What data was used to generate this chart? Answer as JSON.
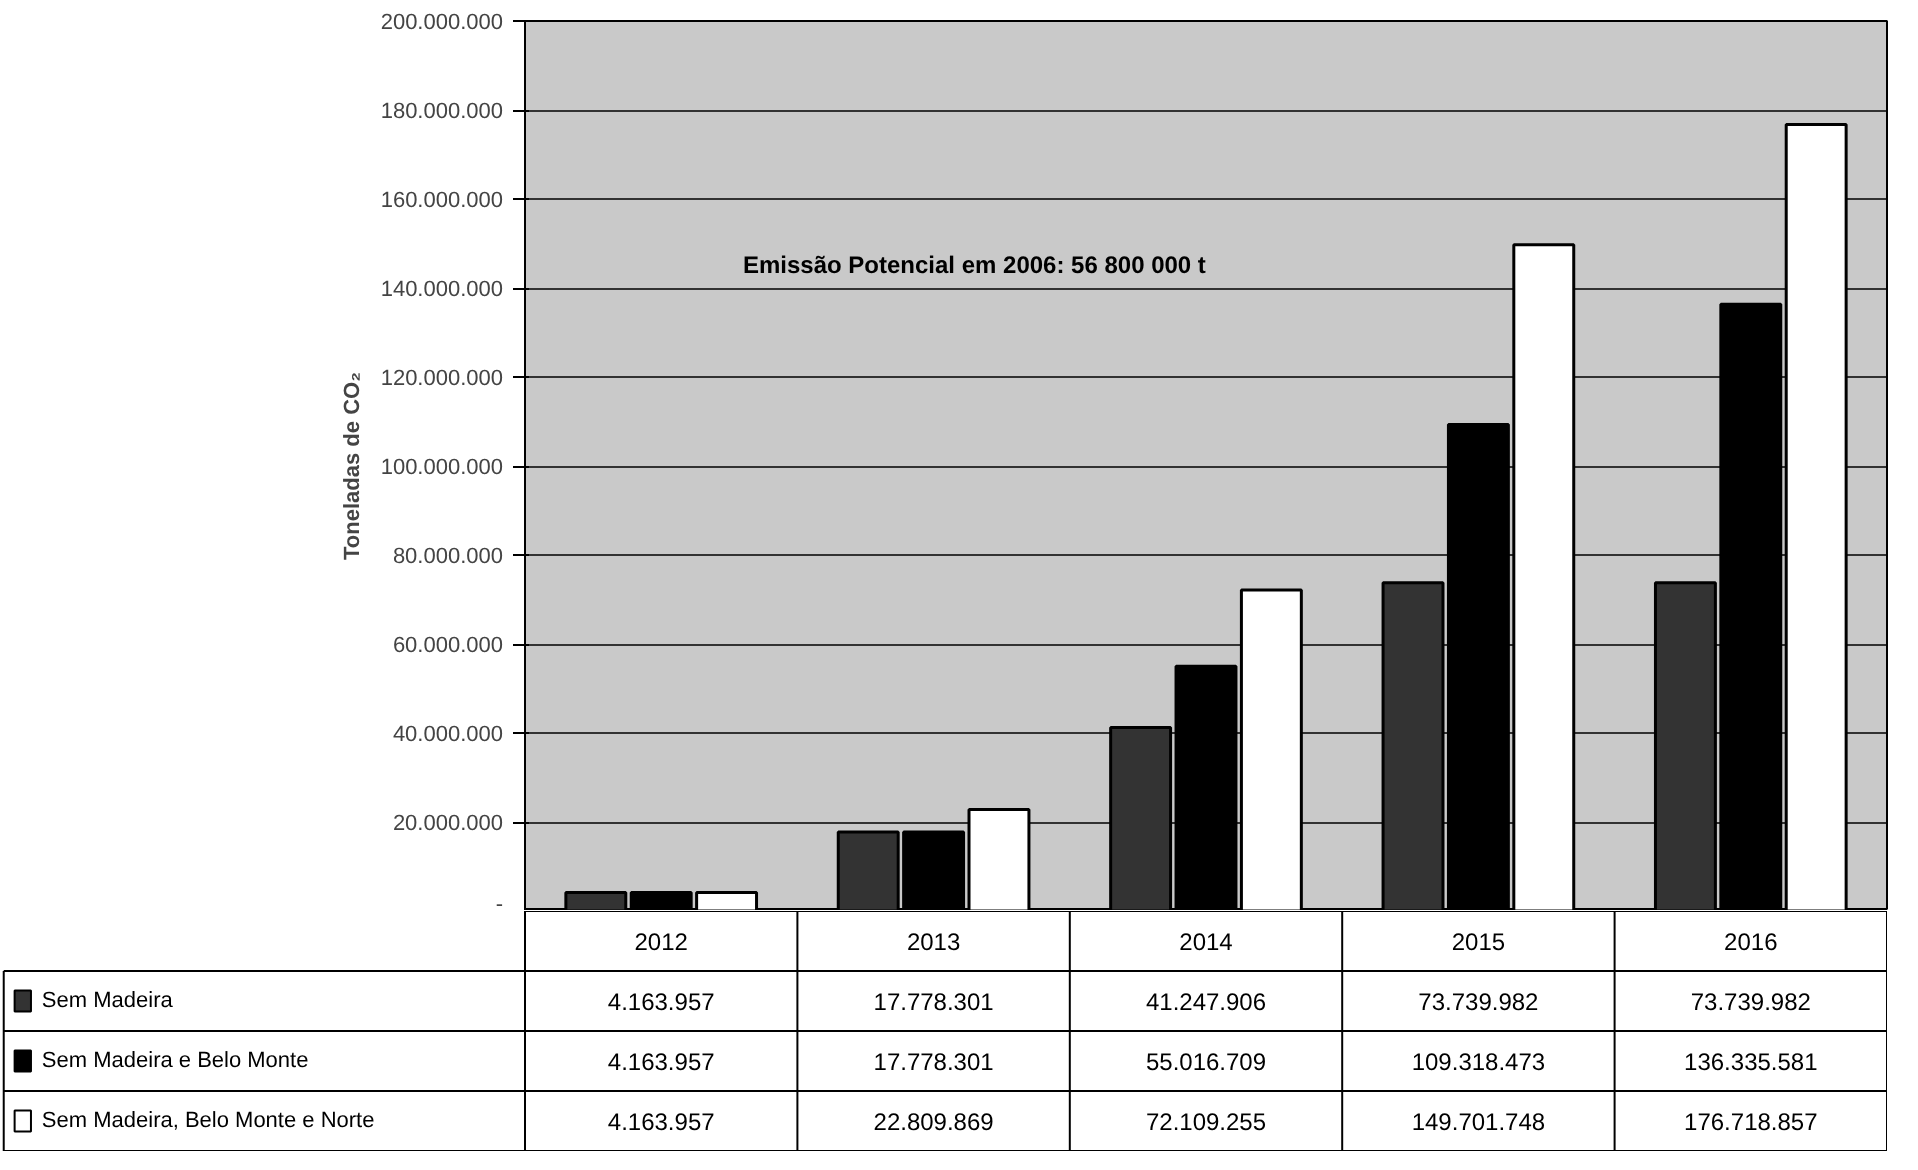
{
  "chart_data": {
    "type": "bar",
    "ylabel": "Toneladas de CO₂",
    "categories": [
      "2012",
      "2013",
      "2014",
      "2015",
      "2016"
    ],
    "series": [
      {
        "name": "Sem Madeira",
        "color": "#333333",
        "values": [
          4163957,
          17778301,
          41247906,
          73739982,
          73739982
        ],
        "value_labels": [
          "4.163.957",
          "17.778.301",
          "41.247.906",
          "73.739.982",
          "73.739.982"
        ]
      },
      {
        "name": "Sem Madeira e Belo Monte",
        "color": "#000000",
        "values": [
          4163957,
          17778301,
          55016709,
          109318473,
          136335581
        ],
        "value_labels": [
          "4.163.957",
          "17.778.301",
          "55.016.709",
          "109.318.473",
          "136.335.581"
        ]
      },
      {
        "name": "Sem Madeira, Belo Monte e Norte",
        "color": "#ffffff",
        "values": [
          4163957,
          22809869,
          72109255,
          149701748,
          176718857
        ],
        "value_labels": [
          "4.163.957",
          "22.809.869",
          "72.109.255",
          "149.701.748",
          "176.718.857"
        ]
      }
    ],
    "ylim": [
      0,
      200000000
    ],
    "yticks": [
      {
        "value": 0,
        "label": "-"
      },
      {
        "value": 20000000,
        "label": "20.000.000"
      },
      {
        "value": 40000000,
        "label": "40.000.000"
      },
      {
        "value": 60000000,
        "label": "60.000.000"
      },
      {
        "value": 80000000,
        "label": "80.000.000"
      },
      {
        "value": 100000000,
        "label": "100.000.000"
      },
      {
        "value": 120000000,
        "label": "120.000.000"
      },
      {
        "value": 140000000,
        "label": "140.000.000"
      },
      {
        "value": 160000000,
        "label": "160.000.000"
      },
      {
        "value": 180000000,
        "label": "180.000.000"
      },
      {
        "value": 200000000,
        "label": "200.000.000"
      }
    ],
    "annotations": [
      "Emissão Potencial em 2006: 56 800 000 t"
    ],
    "grid": "y",
    "legend": "bottom left"
  }
}
